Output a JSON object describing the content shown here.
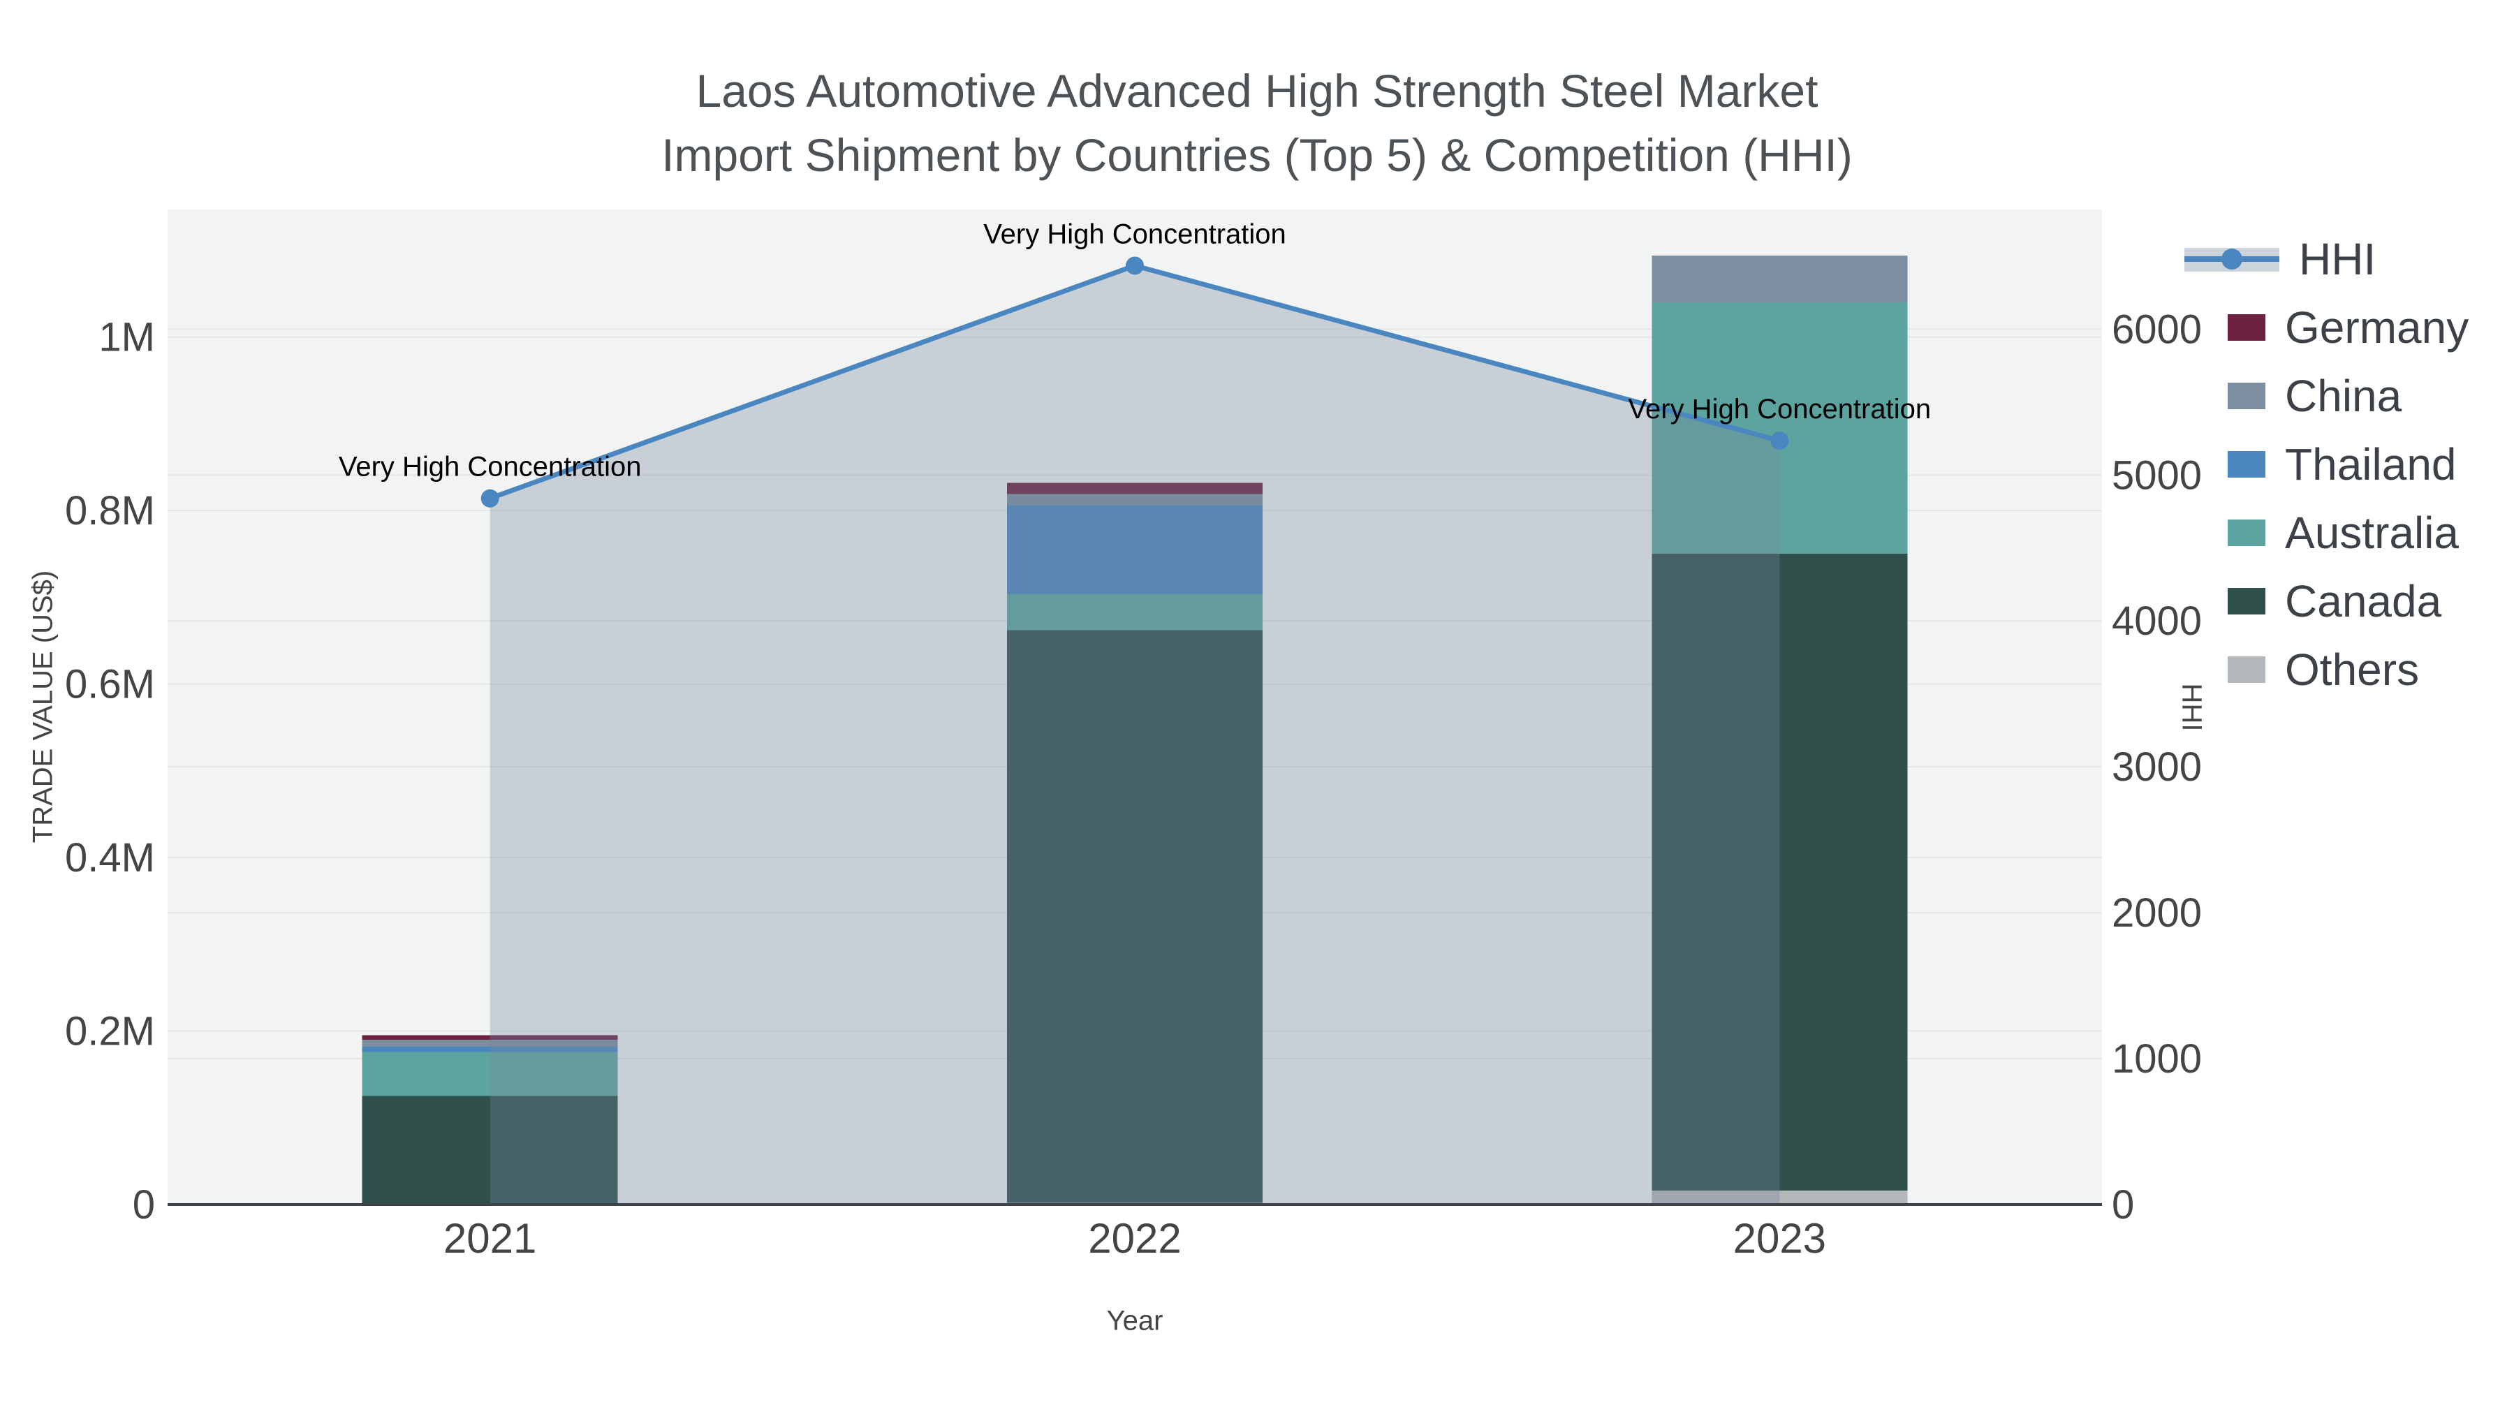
{
  "chart_data": {
    "type": "combo-stacked-bar-line",
    "title_line1": "Laos Automotive Advanced High Strength Steel Market",
    "title_line2": "Import Shipment by Countries (Top 5) & Competition (HHI)",
    "categories": [
      "2021",
      "2022",
      "2023"
    ],
    "bar_series": [
      {
        "name": "Others",
        "color": "#b4b7b9",
        "values": [
          0,
          2000,
          16000
        ]
      },
      {
        "name": "Canada",
        "color": "#2f4f4a",
        "values": [
          125000,
          660000,
          734000
        ]
      },
      {
        "name": "Australia",
        "color": "#5da4a0",
        "values": [
          51000,
          42000,
          290000
        ]
      },
      {
        "name": "Thailand",
        "color": "#4c86bf",
        "values": [
          6000,
          102000,
          0
        ]
      },
      {
        "name": "China",
        "color": "#7d8ea0",
        "values": [
          8000,
          13000,
          54000
        ]
      },
      {
        "name": "Germany",
        "color": "#6c2141",
        "values": [
          5000,
          13000,
          0
        ]
      }
    ],
    "line_series": {
      "name": "HHI",
      "color": "#4a86bf",
      "fill_color": "rgba(119,134,158,0.33)",
      "values": [
        4840,
        6435,
        5235
      ]
    },
    "annotations": [
      {
        "text": "Very High Concentration"
      },
      {
        "text": "Very High Concentration"
      },
      {
        "text": "Very High Concentration"
      }
    ],
    "x": {
      "title": "Year"
    },
    "y_left": {
      "title": "TRADE VALUE (US$)",
      "tick_labels": [
        "0",
        "0.2M",
        "0.4M",
        "0.6M",
        "0.8M",
        "1M"
      ],
      "tick_values": [
        0,
        200000,
        400000,
        600000,
        800000,
        1000000
      ],
      "max": 1147000
    },
    "y_right": {
      "title": "HHI",
      "tick_labels": [
        "0",
        "1000",
        "2000",
        "3000",
        "4000",
        "5000",
        "6000"
      ],
      "tick_values": [
        0,
        1000,
        2000,
        3000,
        4000,
        5000,
        6000
      ],
      "max": 6820
    },
    "legend_order": [
      "HHI",
      "Germany",
      "China",
      "Thailand",
      "Australia",
      "Canada",
      "Others"
    ],
    "style": {
      "plot_bg": "#f2f3f3",
      "grid_color": "#e4e6e7",
      "axis_line_color": "#3f444a",
      "tick_text_color": "#444444",
      "annotation_color": "#000000",
      "legend_band_color": "#ccd3da"
    }
  }
}
